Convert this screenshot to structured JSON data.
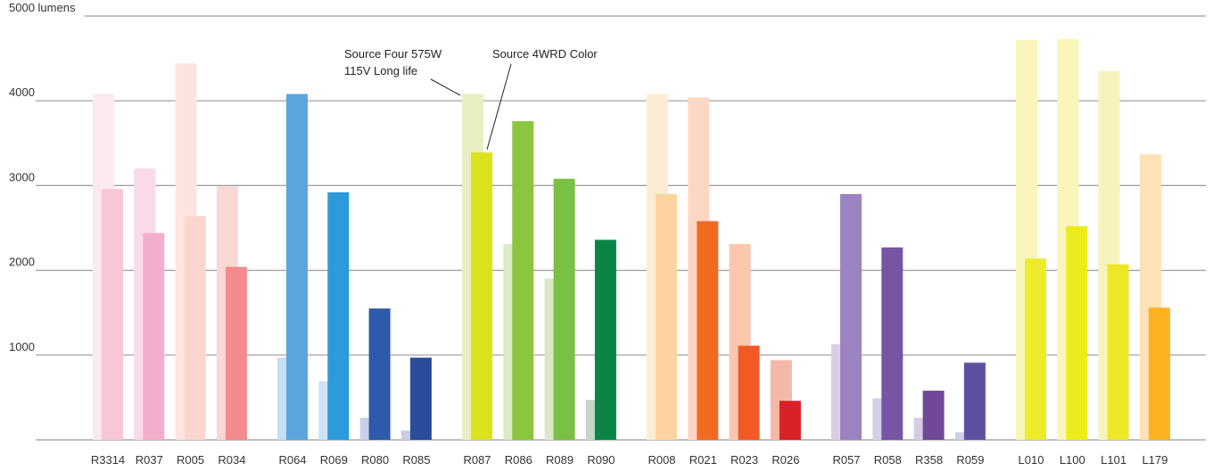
{
  "chart_data": {
    "type": "bar",
    "title": "",
    "xlabel": "",
    "ylabel": "",
    "ylim": [
      0,
      5000
    ],
    "y_ticks": [
      "1000",
      "2000",
      "3000",
      "4000",
      "5000 lumens"
    ],
    "y_tick_values": [
      1000,
      2000,
      3000,
      4000,
      5000
    ],
    "grid": true,
    "annotations": {
      "source_four_line1": "Source Four 575W",
      "source_four_line2": "115V Long life",
      "source_4wrd": "Source 4WRD Color"
    },
    "categories": [
      "R3314",
      "R037",
      "R005",
      "R034",
      "R064",
      "R069",
      "R080",
      "R085",
      "R087",
      "R086",
      "R089",
      "R090",
      "R008",
      "R021",
      "R023",
      "R026",
      "R057",
      "R058",
      "R358",
      "R059",
      "L010",
      "L100",
      "L101",
      "L179"
    ],
    "series": [
      {
        "values": [
          4080,
          3200,
          4440,
          2990,
          970,
          690,
          260,
          110,
          4080,
          2310,
          1900,
          470,
          4080,
          4040,
          2310,
          940,
          1130,
          490,
          260,
          90,
          4720,
          4730,
          4350,
          3370
        ]
      },
      {
        "values": [
          2960,
          2440,
          2640,
          2040,
          4080,
          2920,
          1550,
          970,
          3390,
          3760,
          3080,
          2360,
          2900,
          2580,
          1110,
          460,
          2900,
          2270,
          580,
          910,
          2140,
          2520,
          2070,
          1560
        ]
      }
    ],
    "colors_light": [
      "#fce8ef",
      "#fad9e8",
      "#fde4e0",
      "#fad8d4",
      "#c6def4",
      "#cfe2f3",
      "#c9cfe8",
      "#c8cce6",
      "#e9efc0",
      "#dcebc3",
      "#d8e8c8",
      "#c2d7c8",
      "#fdecd4",
      "#fcd8c4",
      "#fbc7ae",
      "#f4b8a8",
      "#d8cfe6",
      "#d5cfe6",
      "#d7cbe4",
      "#d0cde6",
      "#f7f5bc",
      "#f8f6b8",
      "#f6f3bd",
      "#fde2b6"
    ],
    "colors_dark": [
      "#f8c6d6",
      "#f3aecd",
      "#fbd5cf",
      "#f28a8e",
      "#5aa5de",
      "#2d9ada",
      "#2f59aa",
      "#2a4d9b",
      "#dbe21c",
      "#8cc63f",
      "#7ac143",
      "#0a8444",
      "#fdd49f",
      "#f26a22",
      "#f15a24",
      "#da2128",
      "#9c82c0",
      "#7655a4",
      "#6f4898",
      "#5c51a1",
      "#eeeb2a",
      "#eeeb1c",
      "#ede72a",
      "#fbb21f"
    ]
  }
}
